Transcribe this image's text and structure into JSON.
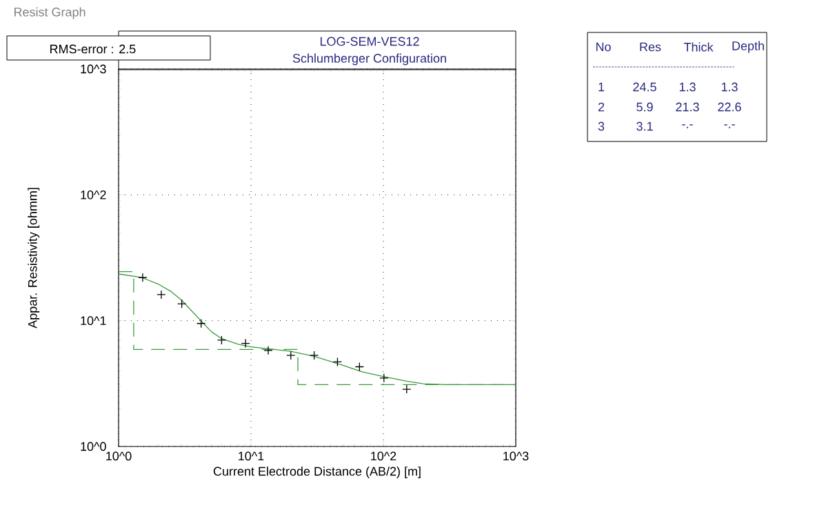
{
  "chart_data": {
    "type": "line",
    "title": "LOG-SEM-VES12",
    "subtitle": "Schlumberger Configuration",
    "xlabel": "Current Electrode Distance (AB/2) [m]",
    "ylabel": "Appar. Resistivity [ohmm]",
    "log": "xy",
    "grid": true,
    "xlim": [
      1,
      1000
    ],
    "ylim": [
      1,
      1000
    ],
    "xticks": [
      {
        "value": 1,
        "label": "10^0"
      },
      {
        "value": 10,
        "label": "10^1"
      },
      {
        "value": 100,
        "label": "10^2"
      },
      {
        "value": 1000,
        "label": "10^3"
      }
    ],
    "yticks": [
      {
        "value": 1,
        "label": "10^0"
      },
      {
        "value": 10,
        "label": "10^1"
      },
      {
        "value": 100,
        "label": "10^2"
      },
      {
        "value": 1000,
        "label": "10^3"
      }
    ],
    "series": [
      {
        "type": "scatter",
        "color": "#000000",
        "marker": "cross",
        "x": [
          1.52,
          2.1,
          3.0,
          4.2,
          6.0,
          9.1,
          13.5,
          20,
          30,
          45,
          66,
          101,
          150
        ],
        "values": [
          22.0,
          16.1,
          13.6,
          9.5,
          7.0,
          6.6,
          5.8,
          5.3,
          5.3,
          4.7,
          4.3,
          3.5,
          2.85
        ]
      },
      {
        "type": "line",
        "color": "#3c9a3c",
        "line_style": "solid",
        "x": [
          1,
          1.5,
          2,
          2.5,
          3,
          4,
          5,
          6,
          8,
          10,
          15,
          20,
          30,
          50,
          70,
          100,
          150,
          200,
          300,
          1000
        ],
        "values": [
          23.5,
          22,
          19.5,
          17,
          14.5,
          10.5,
          8.2,
          7.2,
          6.5,
          6.2,
          5.9,
          5.7,
          5.2,
          4.4,
          3.9,
          3.6,
          3.3,
          3.15,
          3.1,
          3.1
        ]
      },
      {
        "type": "step",
        "color": "#3c9a3c",
        "line_style": "dashed",
        "x": [
          1,
          1.3,
          22.6,
          1000
        ],
        "values": [
          24.5,
          5.9,
          3.1,
          3.1
        ]
      }
    ],
    "annotations": [
      "Resist Graph",
      "RMS-error :  2.5",
      "No",
      "Res",
      "Thick",
      "Depth",
      "1",
      "24.5",
      "1.3",
      "1.3",
      "2",
      "5.9",
      "21.3",
      "22.6",
      "3",
      "3.1",
      "-.-",
      "-.-"
    ]
  }
}
